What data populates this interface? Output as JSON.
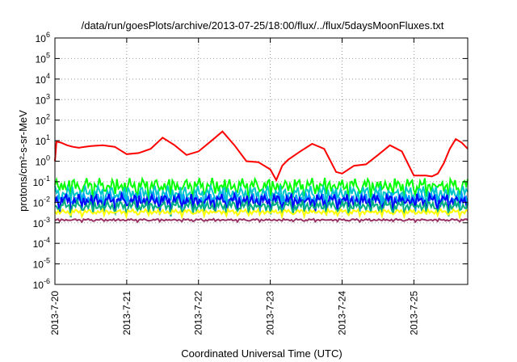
{
  "chart_data": {
    "type": "line",
    "title": "/data/run/goesPlots/archive/2013-07-25/18:00/flux/../flux/5daysMoonFluxes.txt",
    "xlabel": "Coordinated Universal Time (UTC)",
    "ylabel": "protons/cm²-s-sr-MeV",
    "y_scale": "log",
    "ylim": [
      1e-06,
      1000000.0
    ],
    "y_ticks": [
      {
        "base": "10",
        "exp": "-6"
      },
      {
        "base": "10",
        "exp": "-5"
      },
      {
        "base": "10",
        "exp": "-4"
      },
      {
        "base": "10",
        "exp": "-3"
      },
      {
        "base": "10",
        "exp": "-2"
      },
      {
        "base": "10",
        "exp": "-1"
      },
      {
        "base": "10",
        "exp": "0"
      },
      {
        "base": "10",
        "exp": "1"
      },
      {
        "base": "10",
        "exp": "2"
      },
      {
        "base": "10",
        "exp": "3"
      },
      {
        "base": "10",
        "exp": "4"
      },
      {
        "base": "10",
        "exp": "5"
      },
      {
        "base": "10",
        "exp": "6"
      }
    ],
    "x_ticks": [
      "2013-7-20",
      "2013-7-21",
      "2013-7-22",
      "2013-7-23",
      "2013-7-24",
      "2013-7-25"
    ],
    "xlim": [
      "2013-07-20T00:00",
      "2013-07-25T18:00"
    ],
    "grid": true,
    "series": [
      {
        "color": "#ff0000",
        "x": [
          "2013-07-20T00:00",
          "2013-07-20T00:30",
          "2013-07-20T02:00",
          "2013-07-20T04:00",
          "2013-07-20T06:00",
          "2013-07-20T08:00",
          "2013-07-20T10:00",
          "2013-07-20T12:00",
          "2013-07-20T16:00",
          "2013-07-20T20:00",
          "2013-07-21T00:00",
          "2013-07-21T04:00",
          "2013-07-21T08:00",
          "2013-07-21T12:00",
          "2013-07-21T16:00",
          "2013-07-21T20:00",
          "2013-07-22T00:00",
          "2013-07-22T04:00",
          "2013-07-22T08:00",
          "2013-07-22T12:00",
          "2013-07-22T16:00",
          "2013-07-22T20:00",
          "2013-07-23T00:00",
          "2013-07-23T02:00",
          "2013-07-23T04:00",
          "2013-07-23T06:00",
          "2013-07-23T10:00",
          "2013-07-23T14:00",
          "2013-07-23T18:00",
          "2013-07-23T22:00",
          "2013-07-24T00:00",
          "2013-07-24T04:00",
          "2013-07-24T08:00",
          "2013-07-24T12:00",
          "2013-07-24T16:00",
          "2013-07-24T20:00",
          "2013-07-25T00:00",
          "2013-07-25T04:00",
          "2013-07-25T06:00",
          "2013-07-25T08:00",
          "2013-07-25T10:00",
          "2013-07-25T12:00",
          "2013-07-25T14:00",
          "2013-07-25T16:00",
          "2013-07-25T18:00"
        ],
        "y": [
          1.0,
          9,
          8,
          6,
          5,
          4.5,
          5,
          5.5,
          6,
          5,
          2.2,
          2.5,
          4,
          14,
          6,
          2.0,
          3,
          9,
          28,
          6,
          1.0,
          0.9,
          0.4,
          0.12,
          0.6,
          1.2,
          3,
          7,
          4,
          0.3,
          0.25,
          0.6,
          0.7,
          2,
          6,
          3,
          0.2,
          0.2,
          0.18,
          0.25,
          0.8,
          4,
          12,
          8,
          4
        ]
      }
    ],
    "bands": [
      {
        "color": "#00ff00",
        "level": 0.07,
        "spread": 0.35
      },
      {
        "color": "#00c8c8",
        "level": 0.03,
        "spread": 0.35
      },
      {
        "color": "#00a0ff",
        "level": 0.015,
        "spread": 0.35
      },
      {
        "color": "#0000ff",
        "level": 0.013,
        "spread": 0.3
      },
      {
        "color": "#00b080",
        "level": 0.007,
        "spread": 0.25
      },
      {
        "color": "#ffff00",
        "level": 0.0035,
        "spread": 0.12
      },
      {
        "color": "#993366",
        "level": 0.0014,
        "spread": 0.05
      }
    ]
  }
}
